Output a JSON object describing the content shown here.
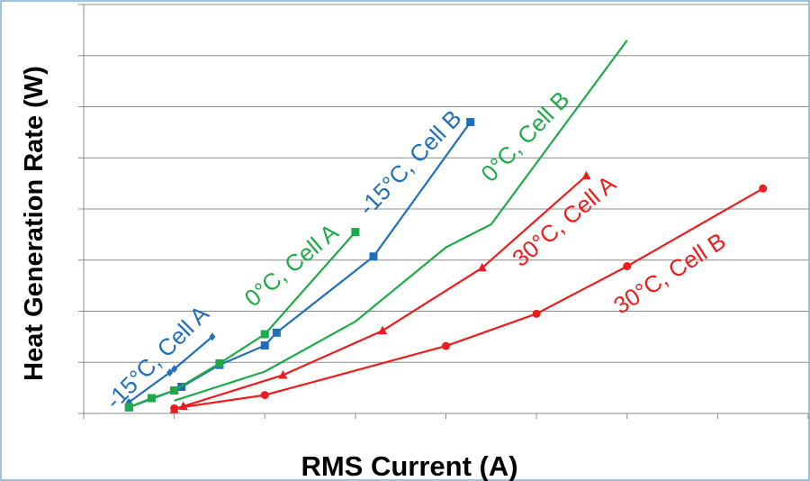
{
  "chart_data": {
    "type": "line",
    "title": "",
    "xlabel": "RMS Current (A)",
    "ylabel": "Heat Generation Rate (W)",
    "xlim": [
      -10,
      70
    ],
    "ylim": [
      0,
      8
    ],
    "x_tick_values": [
      0,
      10,
      20,
      30,
      40,
      50,
      60,
      70
    ],
    "y_gridlines": [
      1,
      2,
      3,
      4,
      5,
      6,
      7,
      8
    ],
    "grid": "horizontal",
    "tick_labels_shown": false,
    "colors": {
      "blue": "#1f6fba",
      "green": "#1faa4a",
      "red": "#ee1c1c",
      "grid": "#8c8c8c",
      "border": "#7aaed6"
    },
    "series": [
      {
        "name": "-15°C, Cell A",
        "color": "#1f6fba",
        "marker": "diamond",
        "x": [
          -5,
          -0.5,
          0,
          4.2
        ],
        "y": [
          0.22,
          0.8,
          0.87,
          1.5
        ]
      },
      {
        "name": "-15°C, Cell B",
        "color": "#1f6fba",
        "marker": "square",
        "x": [
          -5,
          0,
          0.8,
          5,
          10,
          11.3,
          22,
          32.7
        ],
        "y": [
          0.12,
          0.45,
          0.52,
          0.95,
          1.33,
          1.58,
          3.07,
          5.7
        ]
      },
      {
        "name": "0°C, Cell A",
        "color": "#1faa4a",
        "marker": "square",
        "x": [
          -5,
          -2.5,
          0,
          5,
          10,
          20
        ],
        "y": [
          0.12,
          0.3,
          0.45,
          0.98,
          1.55,
          3.55
        ]
      },
      {
        "name": "0°C, Cell B",
        "color": "#1faa4a",
        "marker": "none",
        "x": [
          0,
          10,
          20,
          30,
          35,
          50
        ],
        "y": [
          0.25,
          0.82,
          1.8,
          3.25,
          3.7,
          7.3
        ]
      },
      {
        "name": "30°C, Cell A",
        "color": "#ee1c1c",
        "marker": "triangle",
        "x": [
          0,
          1,
          12,
          23,
          34,
          45.5
        ],
        "y": [
          0.08,
          0.14,
          0.75,
          1.62,
          2.85,
          4.65
        ]
      },
      {
        "name": "30°C, Cell B",
        "color": "#ee1c1c",
        "marker": "circle",
        "x": [
          0,
          10,
          30,
          40,
          50,
          65
        ],
        "y": [
          0.1,
          0.36,
          1.32,
          1.95,
          2.88,
          4.4
        ]
      }
    ]
  }
}
